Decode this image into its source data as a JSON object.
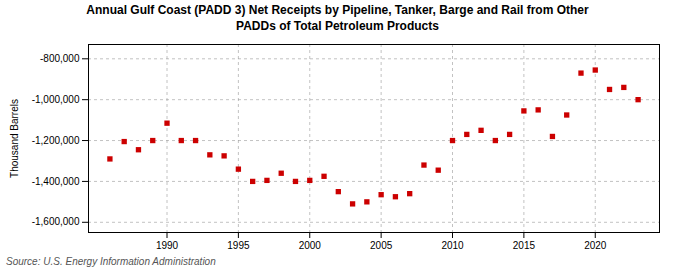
{
  "chart_data": {
    "type": "scatter",
    "title": "Annual Gulf Coast (PADD 3) Net Receipts by Pipeline, Tanker, Barge and Rail from Other\nPADDs of Total Petroleum Products",
    "ylabel": "Thousand Barrels",
    "source": "Source: U.S. Energy Information Administration",
    "color": "#cc0000",
    "marker": "square",
    "x": [
      1986,
      1987,
      1988,
      1989,
      1990,
      1991,
      1992,
      1993,
      1994,
      1995,
      1996,
      1997,
      1998,
      1999,
      2000,
      2001,
      2002,
      2003,
      2004,
      2005,
      2006,
      2007,
      2008,
      2009,
      2010,
      2011,
      2012,
      2013,
      2014,
      2015,
      2016,
      2017,
      2018,
      2019,
      2020,
      2021,
      2022,
      2023
    ],
    "values": [
      -1290000,
      -1205000,
      -1245000,
      -1200000,
      -1115000,
      -1200000,
      -1200000,
      -1270000,
      -1275000,
      -1340000,
      -1400000,
      -1395000,
      -1360000,
      -1400000,
      -1395000,
      -1375000,
      -1450000,
      -1510000,
      -1500000,
      -1465000,
      -1475000,
      -1460000,
      -1320000,
      -1345000,
      -1200000,
      -1170000,
      -1150000,
      -1200000,
      -1170000,
      -1055000,
      -1050000,
      -1180000,
      -1075000,
      -870000,
      -855000,
      -950000,
      -940000,
      -1000000
    ],
    "xlim": [
      1984.5,
      2024.5
    ],
    "xticks": [
      1990,
      1995,
      2000,
      2005,
      2010,
      2015,
      2020
    ],
    "ylim": [
      -1650000,
      -730000
    ],
    "yticks": [
      {
        "value": -1600000,
        "label": "-1,600,000"
      },
      {
        "value": -1400000,
        "label": "-1,400,000"
      },
      {
        "value": -1200000,
        "label": "-1,200,000"
      },
      {
        "value": -1000000,
        "label": "-1,000,000"
      },
      {
        "value": -800000,
        "label": "-800,000"
      }
    ],
    "grid": true
  }
}
